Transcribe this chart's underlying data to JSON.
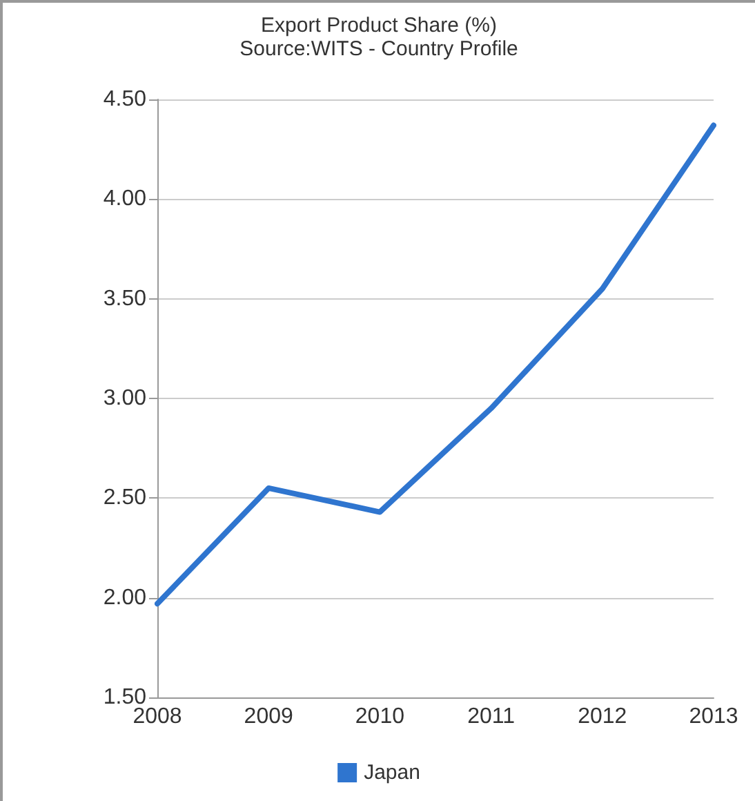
{
  "chart_data": {
    "type": "line",
    "title": "Export Product Share (%)",
    "subtitle": "Source:WITS - Country Profile",
    "categories": [
      "2008",
      "2009",
      "2010",
      "2011",
      "2012",
      "2013"
    ],
    "series": [
      {
        "name": "Japan",
        "color": "#2f75cf",
        "values": [
          1.97,
          2.55,
          2.43,
          2.95,
          3.55,
          4.37
        ]
      }
    ],
    "ylim": [
      1.5,
      4.5
    ],
    "yticks": [
      {
        "value": 1.5,
        "label": "1.50"
      },
      {
        "value": 2,
        "label": "2.00"
      },
      {
        "value": 2.5,
        "label": "2.50"
      },
      {
        "value": 3,
        "label": "3.00"
      },
      {
        "value": 3.5,
        "label": "3.50"
      },
      {
        "value": 4,
        "label": "4.00"
      },
      {
        "value": 4.5,
        "label": "4.50"
      }
    ],
    "grid": "y",
    "legend": "bottom",
    "marker": "none",
    "line_style": "solid"
  }
}
